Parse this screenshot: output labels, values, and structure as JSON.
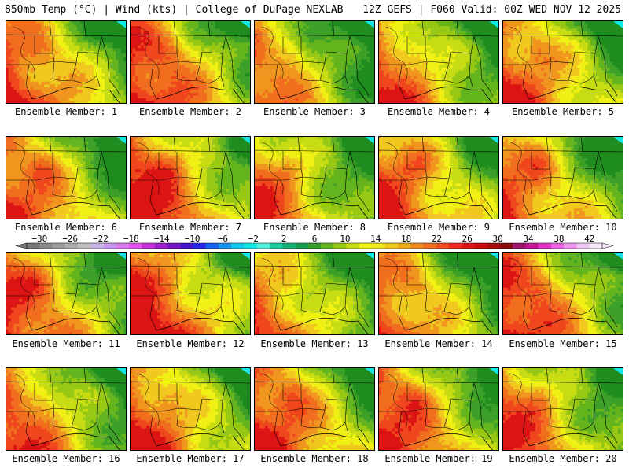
{
  "header": {
    "left": "850mb Temp (°C) | Wind (kts) | College of DuPage NEXLAB",
    "right": "12Z GEFS | F060 Valid: 00Z WED NOV 12 2025"
  },
  "members": [
    {
      "label": "Ensemble Member: 1",
      "warm": 0.72
    },
    {
      "label": "Ensemble Member: 2",
      "warm": 0.78
    },
    {
      "label": "Ensemble Member: 3",
      "warm": 0.55
    },
    {
      "label": "Ensemble Member: 4",
      "warm": 0.62
    },
    {
      "label": "Ensemble Member: 5",
      "warm": 0.7
    },
    {
      "label": "Ensemble Member: 6",
      "warm": 0.68
    },
    {
      "label": "Ensemble Member: 7",
      "warm": 0.8
    },
    {
      "label": "Ensemble Member: 8",
      "warm": 0.6
    },
    {
      "label": "Ensemble Member: 9",
      "warm": 0.74
    },
    {
      "label": "Ensemble Member: 10",
      "warm": 0.66
    },
    {
      "label": "Ensemble Member: 11",
      "warm": 0.7
    },
    {
      "label": "Ensemble Member: 12",
      "warm": 0.82
    },
    {
      "label": "Ensemble Member: 13",
      "warm": 0.58
    },
    {
      "label": "Ensemble Member: 14",
      "warm": 0.63
    },
    {
      "label": "Ensemble Member: 15",
      "warm": 0.76
    },
    {
      "label": "Ensemble Member: 16",
      "warm": 0.64
    },
    {
      "label": "Ensemble Member: 17",
      "warm": 0.72
    },
    {
      "label": "Ensemble Member: 18",
      "warm": 0.78
    },
    {
      "label": "Ensemble Member: 19",
      "warm": 0.74
    },
    {
      "label": "Ensemble Member: 20",
      "warm": 0.66
    }
  ],
  "colorbar": {
    "tick_labels": [
      "−30",
      "−26",
      "−22",
      "−18",
      "−14",
      "−10",
      "−6",
      "−2",
      "2",
      "6",
      "10",
      "14",
      "18",
      "22",
      "26",
      "30",
      "34",
      "38",
      "42"
    ],
    "colors": [
      "#787878",
      "#8a8a8a",
      "#9c9c9c",
      "#adadad",
      "#bebebe",
      "#c8b4e6",
      "#c896f0",
      "#dc78f0",
      "#e650f0",
      "#c832dc",
      "#a01ecc",
      "#7814c8",
      "#4614c8",
      "#2828e6",
      "#1464f0",
      "#1496f0",
      "#14c8f0",
      "#14e6e6",
      "#50f0dc",
      "#1ecca0",
      "#14b478",
      "#14a050",
      "#32a028",
      "#64b41e",
      "#96c814",
      "#c8dc14",
      "#f0f014",
      "#f0e61e",
      "#f0c81e",
      "#f0aa1e",
      "#f08c1e",
      "#f06e1e",
      "#f0501e",
      "#f0281e",
      "#dc1414",
      "#c80a0a",
      "#aa0a0a",
      "#8c0a0a",
      "#a0146e",
      "#c81496",
      "#e632c8",
      "#f064e6",
      "#f096f0",
      "#f0c8f5",
      "#f5e6fa"
    ]
  },
  "field_colors": [
    "#1e8c1e",
    "#3ca028",
    "#64b41e",
    "#96c814",
    "#c8dc14",
    "#f0f014",
    "#f0c81e",
    "#f0961e",
    "#f06e1e",
    "#f0461e",
    "#dc1414"
  ]
}
